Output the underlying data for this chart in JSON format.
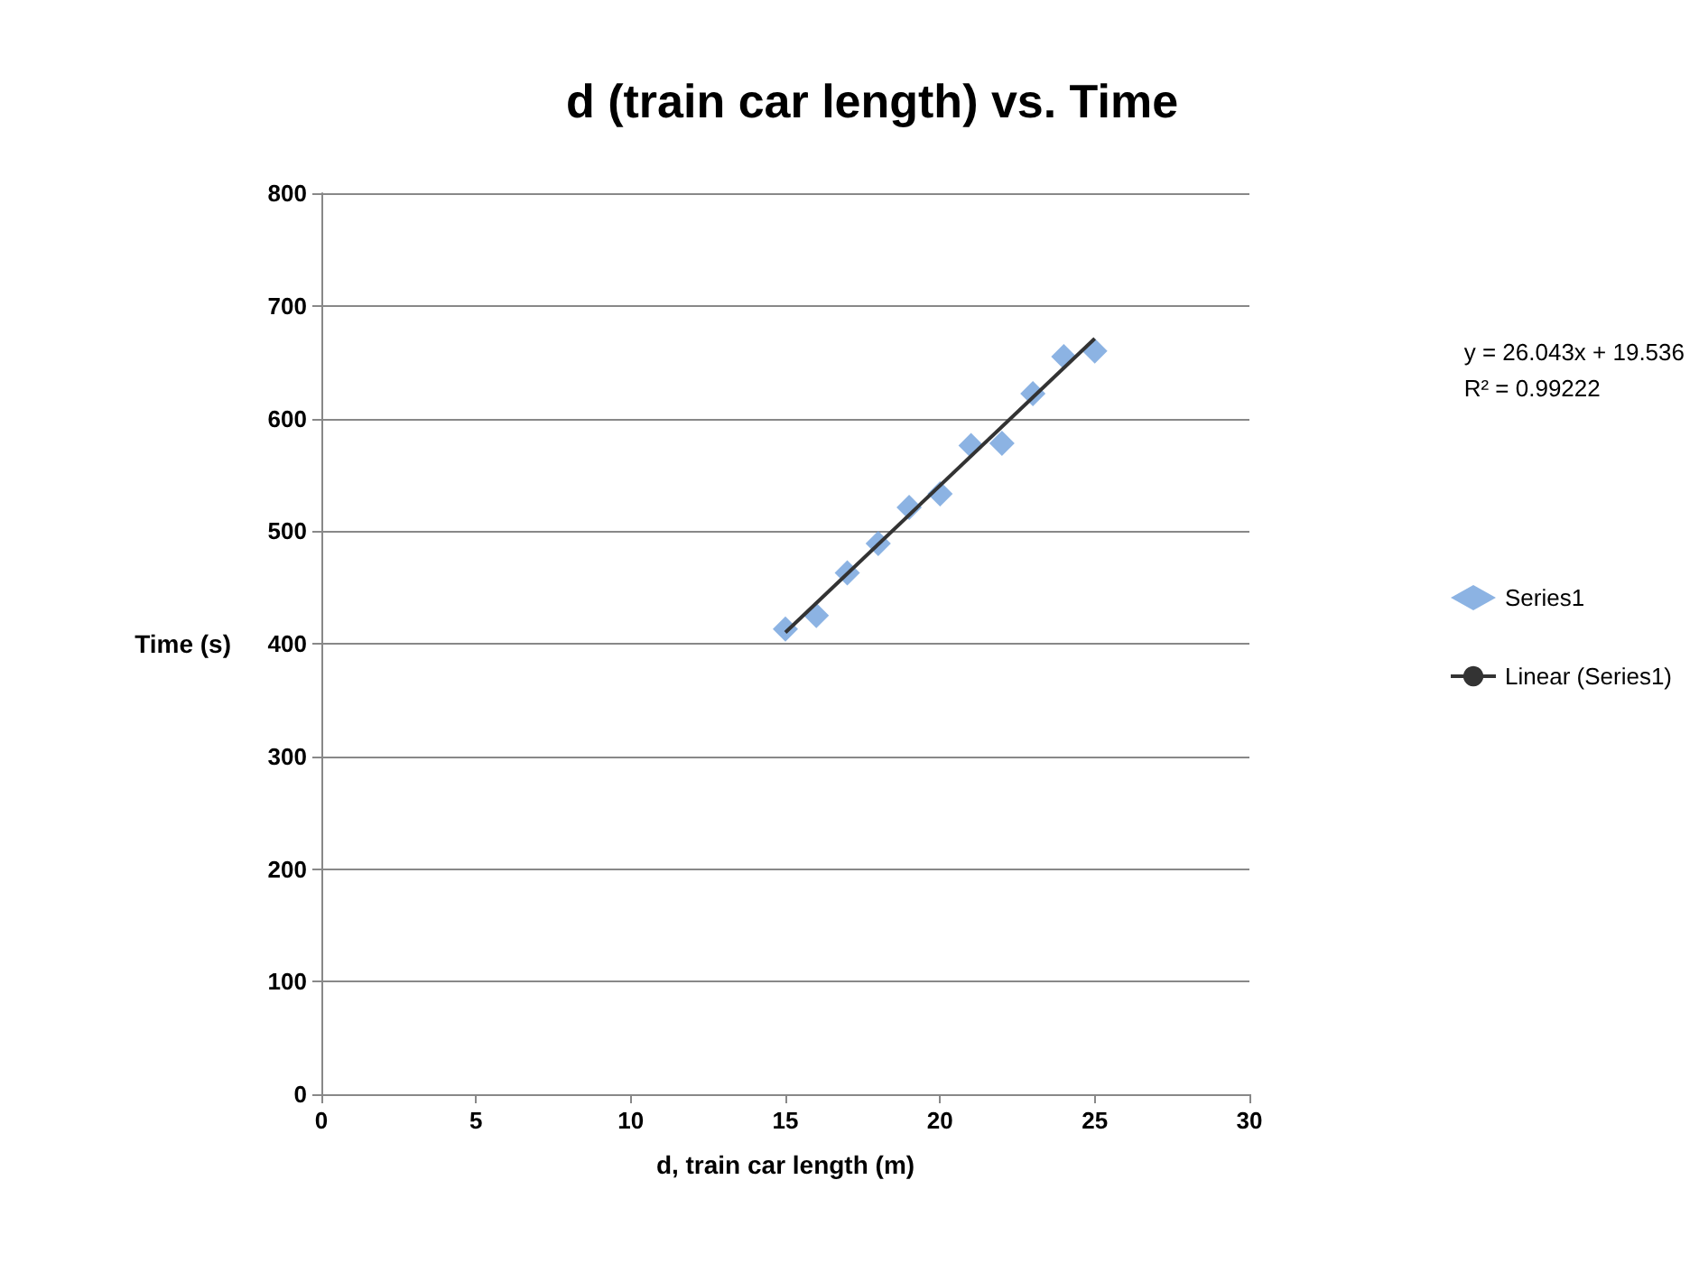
{
  "chart_data": {
    "type": "scatter",
    "title": "d (train car length) vs. Time",
    "xlabel": "d, train car length (m)",
    "ylabel": "Time (s)",
    "xlim": [
      0,
      30
    ],
    "xticks": [
      0,
      5,
      10,
      15,
      20,
      25,
      30
    ],
    "ylim": [
      0,
      800
    ],
    "yticks": [
      0,
      100,
      200,
      300,
      400,
      500,
      600,
      700,
      800
    ],
    "grid": "y",
    "legend": "right",
    "annotations": [
      "y = 26.043x + 19.536\nR² = 0.99222"
    ],
    "series": [
      {
        "name": "Series1",
        "marker": "diamond",
        "color": "#6fa0dc",
        "x": [
          15,
          16,
          17,
          18,
          19,
          20,
          21,
          22,
          23,
          24,
          25
        ],
        "values": [
          413,
          425,
          463,
          489,
          521,
          533,
          576,
          578,
          622,
          655,
          660
        ]
      },
      {
        "name": "Linear (Series1)",
        "type": "line",
        "marker": "none",
        "color": "#333333",
        "x": [
          15,
          25
        ],
        "values": [
          410,
          671
        ]
      }
    ]
  }
}
